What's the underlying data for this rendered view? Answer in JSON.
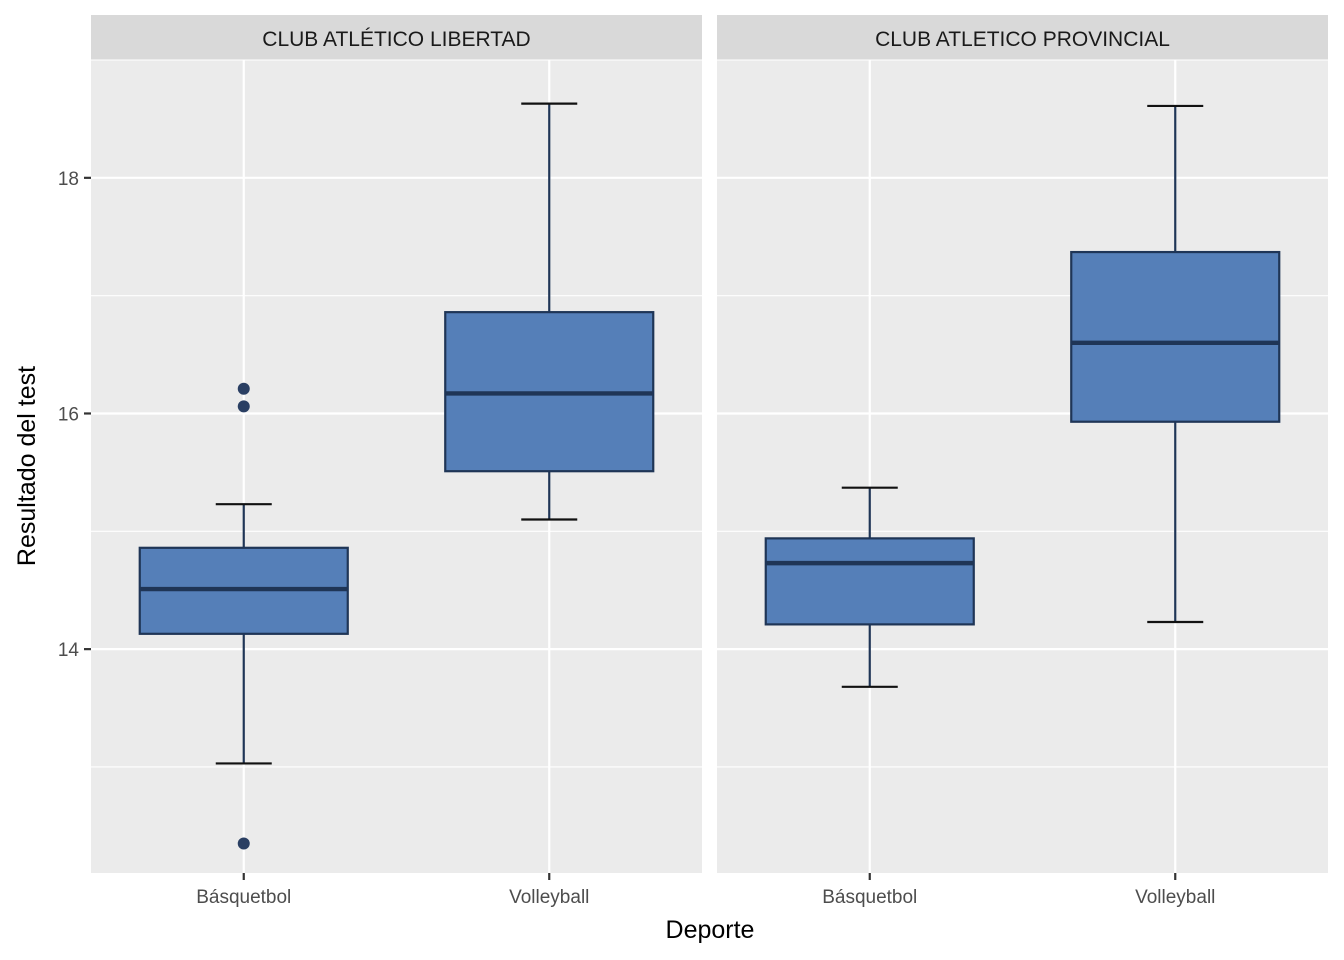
{
  "chart_data": {
    "type": "boxplot",
    "xlabel": "Deporte",
    "ylabel": "Resultado del test",
    "ylim": [
      12.1,
      19.0
    ],
    "y_ticks": [
      14,
      16,
      18
    ],
    "y_tick_labels": [
      "14",
      "16",
      "18"
    ],
    "categories": [
      "Básquetbol",
      "Volleyball"
    ],
    "grid": true,
    "colors": {
      "box_fill": "#4f7bb6",
      "box_line": "#1f3556",
      "panel_bg": "#ebebeb",
      "strip_bg": "#d9d9d9"
    },
    "facets": [
      {
        "title": "CLUB ATLÉTICO LIBERTAD",
        "boxes": [
          {
            "category": "Básquetbol",
            "whisker_low": 13.03,
            "q1": 14.13,
            "median": 14.51,
            "q3": 14.86,
            "whisker_high": 15.23,
            "outliers": [
              16.21,
              16.06,
              12.35
            ]
          },
          {
            "category": "Volleyball",
            "whisker_low": 15.1,
            "q1": 15.51,
            "median": 16.17,
            "q3": 16.86,
            "whisker_high": 18.63,
            "outliers": []
          }
        ]
      },
      {
        "title": "CLUB ATLETICO PROVINCIAL",
        "boxes": [
          {
            "category": "Básquetbol",
            "whisker_low": 13.68,
            "q1": 14.21,
            "median": 14.73,
            "q3": 14.94,
            "whisker_high": 15.37,
            "outliers": []
          },
          {
            "category": "Volleyball",
            "whisker_low": 14.23,
            "q1": 15.93,
            "median": 16.6,
            "q3": 17.37,
            "whisker_high": 18.61,
            "outliers": []
          }
        ]
      }
    ]
  }
}
